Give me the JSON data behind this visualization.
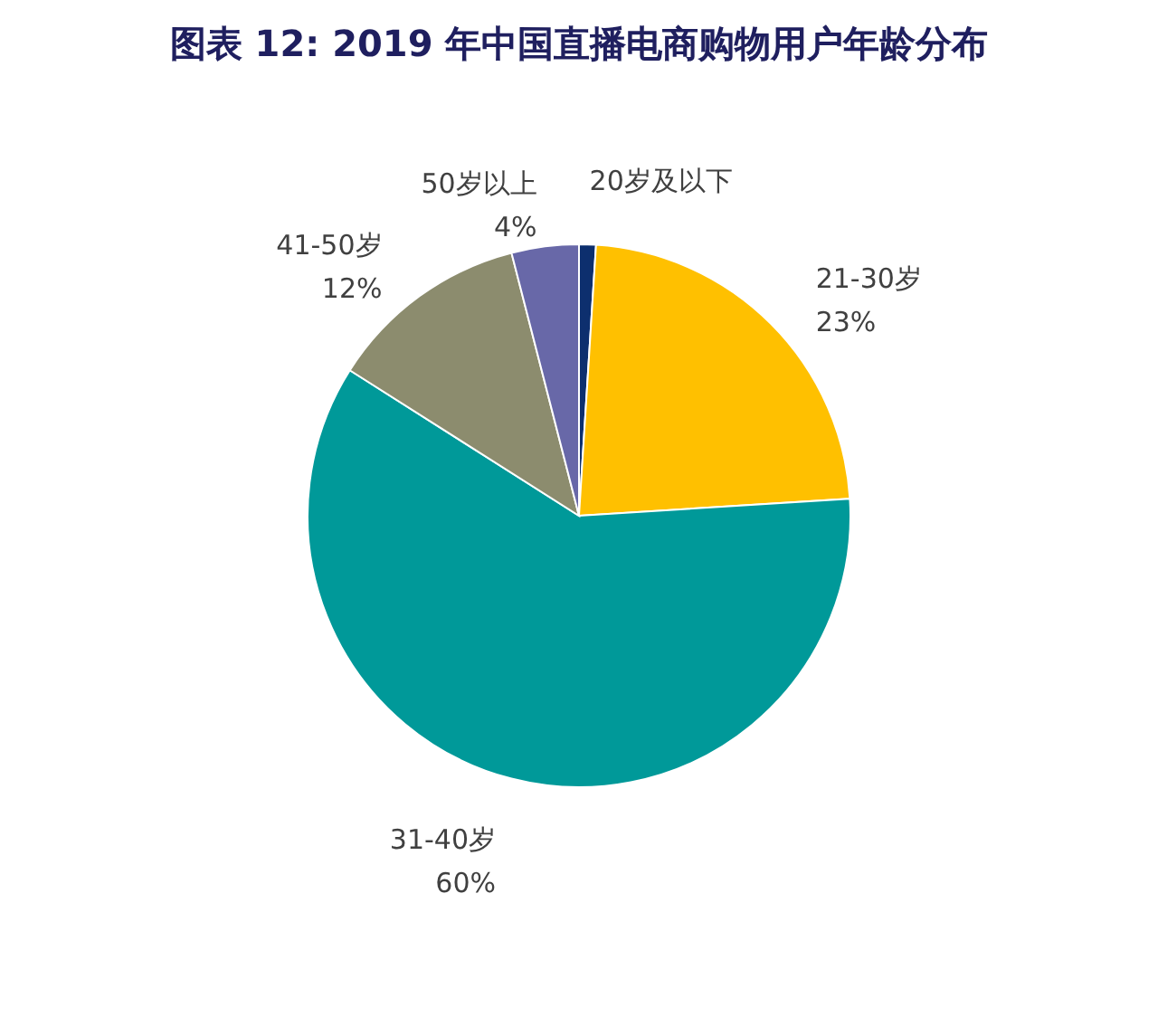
{
  "chart_data": {
    "type": "pie",
    "title": "图表 12: 2019 年中国直播电商购物用户年龄分布",
    "categories": [
      "20岁及以下",
      "21-30岁",
      "31-40岁",
      "41-50岁",
      "50岁以上"
    ],
    "values": [
      1,
      23,
      60,
      12,
      4
    ],
    "value_labels": [
      null,
      "23%",
      "60%",
      "12%",
      "4%"
    ],
    "colors": [
      "#0d2f6e",
      "#ffc000",
      "#009999",
      "#8c8c6e",
      "#6868a8"
    ],
    "legend": false
  }
}
